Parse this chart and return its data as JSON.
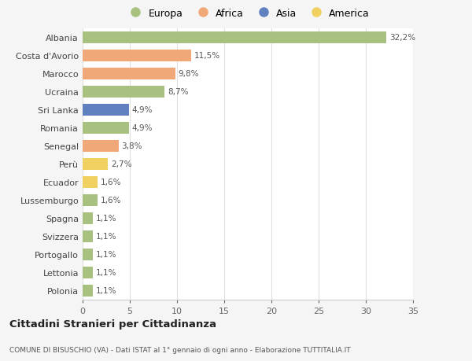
{
  "countries": [
    "Albania",
    "Costa d'Avorio",
    "Marocco",
    "Ucraina",
    "Sri Lanka",
    "Romania",
    "Senegal",
    "Perù",
    "Ecuador",
    "Lussemburgo",
    "Spagna",
    "Svizzera",
    "Portogallo",
    "Lettonia",
    "Polonia"
  ],
  "values": [
    32.2,
    11.5,
    9.8,
    8.7,
    4.9,
    4.9,
    3.8,
    2.7,
    1.6,
    1.6,
    1.1,
    1.1,
    1.1,
    1.1,
    1.1
  ],
  "labels": [
    "32,2%",
    "11,5%",
    "9,8%",
    "8,7%",
    "4,9%",
    "4,9%",
    "3,8%",
    "2,7%",
    "1,6%",
    "1,6%",
    "1,1%",
    "1,1%",
    "1,1%",
    "1,1%",
    "1,1%"
  ],
  "continents": [
    "Europa",
    "Africa",
    "Africa",
    "Europa",
    "Asia",
    "Europa",
    "Africa",
    "America",
    "America",
    "Europa",
    "Europa",
    "Europa",
    "Europa",
    "Europa",
    "Europa"
  ],
  "colors": {
    "Europa": "#a8c080",
    "Africa": "#f0a878",
    "Asia": "#6080c0",
    "America": "#f0d060"
  },
  "legend_order": [
    "Europa",
    "Africa",
    "Asia",
    "America"
  ],
  "title": "Cittadini Stranieri per Cittadinanza",
  "subtitle": "COMUNE DI BISUSCHIO (VA) - Dati ISTAT al 1° gennaio di ogni anno - Elaborazione TUTTITALIA.IT",
  "xlim": [
    0,
    35
  ],
  "xticks": [
    0,
    5,
    10,
    15,
    20,
    25,
    30,
    35
  ],
  "bg_color": "#f5f5f5",
  "bar_bg_color": "#ffffff",
  "grid_color": "#e0e0e0"
}
